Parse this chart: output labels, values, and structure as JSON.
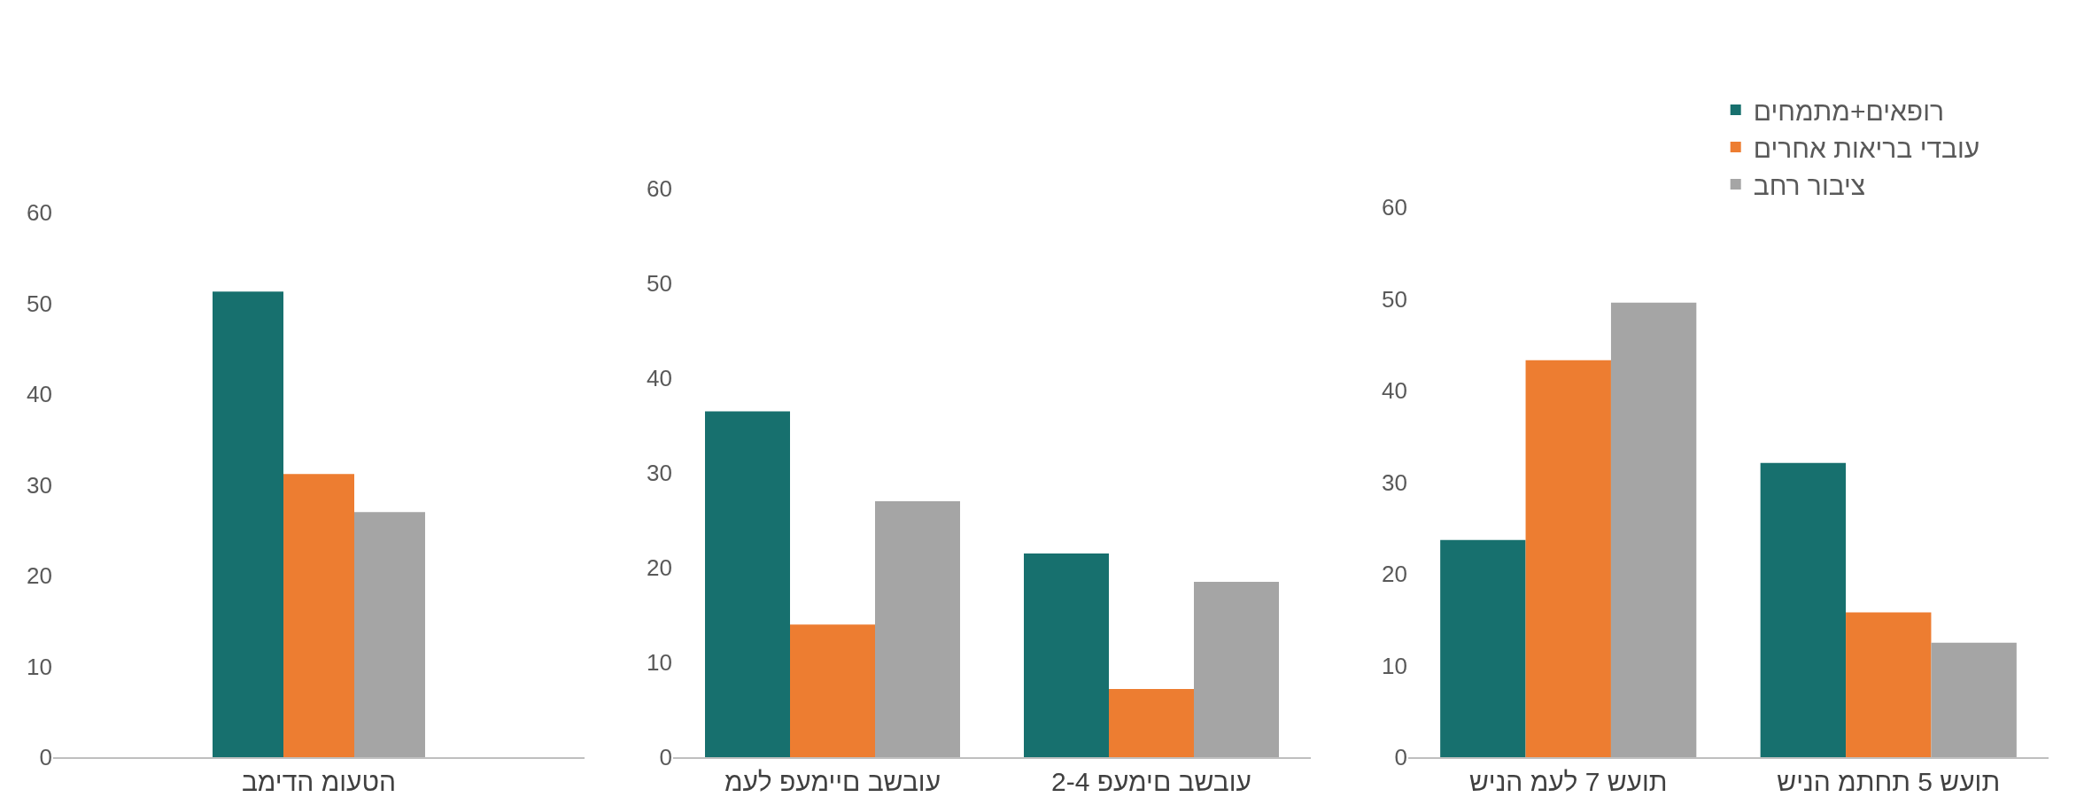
{
  "chart_data": [
    {
      "type": "bar",
      "categories": [
        "הטעומ הדימב"
      ],
      "series": [
        {
          "color": "#17706e",
          "values": [
            51.3
          ]
        },
        {
          "color": "#ed7d31",
          "values": [
            31.2
          ]
        },
        {
          "color": "#a5a5a5",
          "values": [
            27
          ]
        }
      ],
      "ylim": [
        0,
        60
      ],
      "yticks": [
        0,
        10,
        20,
        30,
        40,
        50,
        60
      ],
      "grid": false,
      "legend": false
    },
    {
      "type": "bar",
      "categories": [
        "עובשב םיימעפ לעמ",
        "עובשב םימעפ 2-4"
      ],
      "series": [
        {
          "color": "#17706e",
          "values": [
            36.5,
            21.5
          ]
        },
        {
          "color": "#ed7d31",
          "values": [
            14,
            7.2
          ]
        },
        {
          "color": "#a5a5a5",
          "values": [
            27,
            18.5
          ]
        }
      ],
      "ylim": [
        0,
        60
      ],
      "yticks": [
        0,
        10,
        20,
        30,
        40,
        50,
        60
      ],
      "grid": false,
      "legend": false
    },
    {
      "type": "bar",
      "categories": [
        "תועש 7 לעמ הניש",
        "תועש 5 תחתמ הניש"
      ],
      "series": [
        {
          "name": "רופאים+מתמחים",
          "color": "#17706e",
          "values": [
            23.7,
            32.1
          ]
        },
        {
          "name": "עובדי בריאות אחרים",
          "color": "#ed7d31",
          "values": [
            43.3,
            15.8
          ]
        },
        {
          "name": "ציבור רחב",
          "color": "#a5a5a5",
          "values": [
            49.6,
            12.5
          ]
        }
      ],
      "ylim": [
        0,
        60
      ],
      "yticks": [
        0,
        10,
        20,
        30,
        40,
        50,
        60
      ],
      "grid": false,
      "legend": "top right"
    }
  ]
}
